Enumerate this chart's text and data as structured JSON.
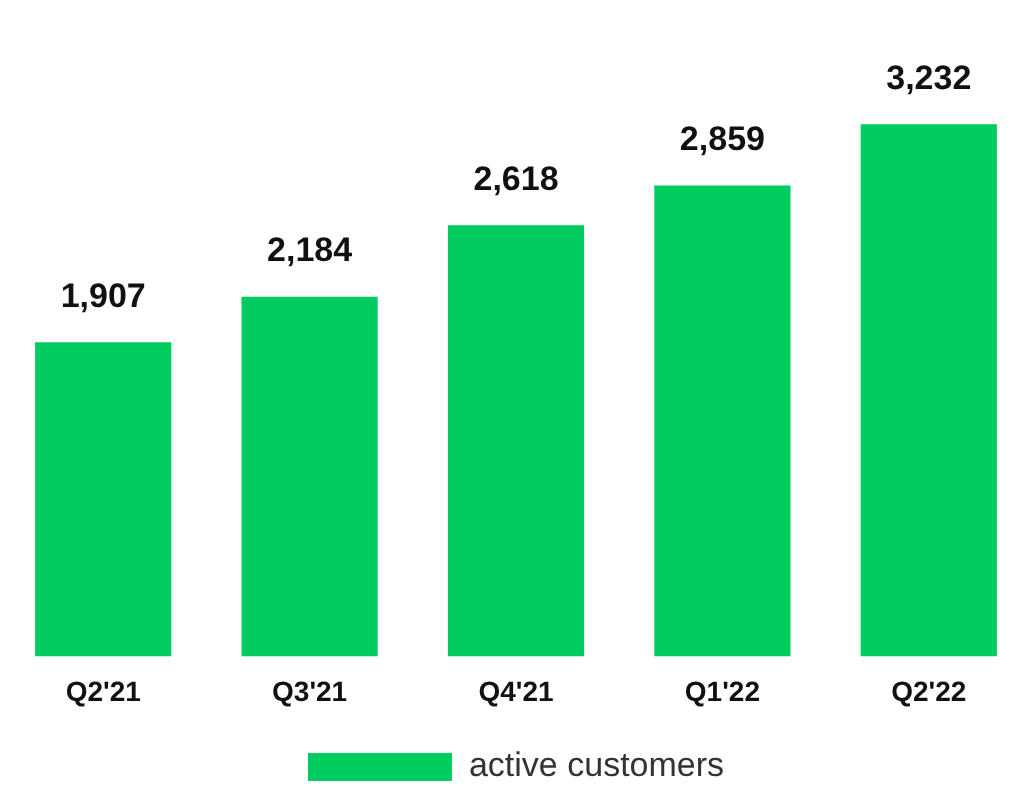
{
  "chart_data": {
    "type": "bar",
    "categories": [
      "Q2'21",
      "Q3'21",
      "Q4'21",
      "Q1'22",
      "Q2'22"
    ],
    "series": [
      {
        "name": "active customers",
        "color": "#00cc5f",
        "values": [
          1907,
          2184,
          2618,
          2859,
          3232
        ],
        "value_labels": [
          "1,907",
          "2,184",
          "2,618",
          "2,859",
          "3,232"
        ]
      }
    ],
    "legend": "bottom",
    "grid": false
  }
}
